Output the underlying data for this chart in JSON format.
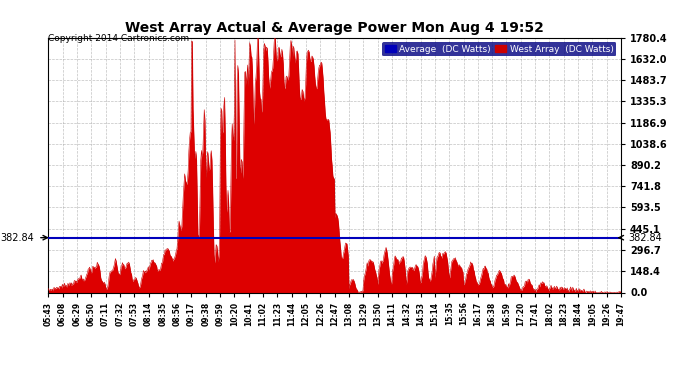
{
  "title": "West Array Actual & Average Power Mon Aug 4 19:52",
  "copyright": "Copyright 2014 Cartronics.com",
  "legend_labels": [
    "Average  (DC Watts)",
    "West Array  (DC Watts)"
  ],
  "legend_colors": [
    "#0000bb",
    "#cc0000"
  ],
  "average_value": 382.84,
  "y_ticks": [
    0.0,
    148.4,
    296.7,
    445.1,
    593.5,
    741.8,
    890.2,
    1038.6,
    1186.9,
    1335.3,
    1483.7,
    1632.0,
    1780.4
  ],
  "x_labels": [
    "05:43",
    "06:08",
    "06:29",
    "06:50",
    "07:11",
    "07:32",
    "07:53",
    "08:14",
    "08:35",
    "08:56",
    "09:17",
    "09:38",
    "09:59",
    "10:20",
    "10:41",
    "11:02",
    "11:23",
    "11:44",
    "12:05",
    "12:26",
    "12:47",
    "13:08",
    "13:29",
    "13:50",
    "14:11",
    "14:32",
    "14:53",
    "15:14",
    "15:35",
    "15:56",
    "16:17",
    "16:38",
    "16:59",
    "17:20",
    "17:41",
    "18:02",
    "18:23",
    "18:44",
    "19:05",
    "19:26",
    "19:47"
  ],
  "background_color": "#ffffff",
  "grid_color": "#999999",
  "fill_color": "#dd0000",
  "line_color": "#cc0000",
  "avg_line_color": "#0000bb",
  "y_max": 1780.4,
  "y_min": 0.0,
  "figsize": [
    6.9,
    3.75
  ],
  "dpi": 100
}
